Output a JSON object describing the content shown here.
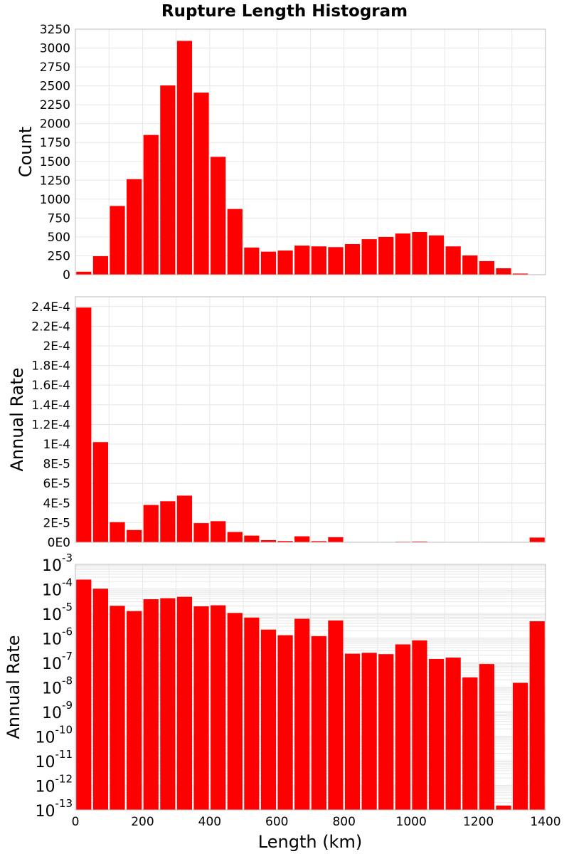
{
  "chart_data": {
    "type": "bar",
    "title": "Rupture Length Histogram",
    "xlabel": "Length (km)",
    "xlim": [
      0,
      1400
    ],
    "bin_width": 50,
    "x_ticks": [
      0,
      200,
      400,
      600,
      800,
      1000,
      1200,
      1400
    ],
    "bar_color": "#ff0000",
    "grid": true,
    "bin_centers": [
      25,
      75,
      125,
      175,
      225,
      275,
      325,
      375,
      425,
      475,
      525,
      575,
      625,
      675,
      725,
      775,
      825,
      875,
      925,
      975,
      1025,
      1075,
      1125,
      1175,
      1225,
      1275,
      1325,
      1375
    ],
    "panels": [
      {
        "name": "count",
        "ylabel": "Count",
        "yscale": "linear",
        "ylim": [
          0,
          3250
        ],
        "y_ticks": [
          {
            "value": 0,
            "label": "0"
          },
          {
            "value": 250,
            "label": "250"
          },
          {
            "value": 500,
            "label": "500"
          },
          {
            "value": 750,
            "label": "750"
          },
          {
            "value": 1000,
            "label": "1000"
          },
          {
            "value": 1250,
            "label": "1250"
          },
          {
            "value": 1500,
            "label": "1500"
          },
          {
            "value": 1750,
            "label": "1750"
          },
          {
            "value": 2000,
            "label": "2000"
          },
          {
            "value": 2250,
            "label": "2250"
          },
          {
            "value": 2500,
            "label": "2500"
          },
          {
            "value": 2750,
            "label": "2750"
          },
          {
            "value": 3000,
            "label": "3000"
          },
          {
            "value": 3250,
            "label": "3250"
          }
        ],
        "values": [
          40,
          245,
          910,
          1265,
          1850,
          2505,
          3095,
          2410,
          1560,
          870,
          360,
          305,
          320,
          385,
          375,
          365,
          405,
          470,
          500,
          545,
          565,
          520,
          375,
          255,
          180,
          85,
          15,
          5
        ]
      },
      {
        "name": "rate-linear",
        "ylabel": "Annual Rate",
        "yscale": "linear",
        "ylim": [
          0,
          0.00025
        ],
        "y_ticks": [
          {
            "value": 0,
            "label": "0E0"
          },
          {
            "value": 2e-05,
            "label": "2E-5"
          },
          {
            "value": 4e-05,
            "label": "4E-5"
          },
          {
            "value": 6e-05,
            "label": "6E-5"
          },
          {
            "value": 8e-05,
            "label": "8E-5"
          },
          {
            "value": 0.0001,
            "label": "1E-4"
          },
          {
            "value": 0.00012,
            "label": "1.2E-4"
          },
          {
            "value": 0.00014,
            "label": "1.4E-4"
          },
          {
            "value": 0.00016,
            "label": "1.6E-4"
          },
          {
            "value": 0.00018,
            "label": "1.8E-4"
          },
          {
            "value": 0.0002,
            "label": "2E-4"
          },
          {
            "value": 0.00022,
            "label": "2.2E-4"
          },
          {
            "value": 0.00024,
            "label": "2.4E-4"
          }
        ],
        "values": [
          0.000239,
          0.000102,
          2.05e-05,
          1.25e-05,
          3.8e-05,
          4.18e-05,
          4.75e-05,
          1.95e-05,
          2.15e-05,
          1.05e-05,
          6.8e-06,
          2.2e-06,
          1.3e-06,
          6.1e-06,
          1.2e-06,
          5.2e-06,
          2.3e-07,
          2.5e-07,
          2.2e-07,
          5.5e-07,
          8e-07,
          1.4e-07,
          1.6e-07,
          2.5e-08,
          8.7e-08,
          1.5e-13,
          1.5e-08,
          4.8e-06
        ]
      },
      {
        "name": "rate-log",
        "ylabel": "Annual Rate",
        "yscale": "log",
        "ylim": [
          1e-13,
          0.001
        ],
        "y_ticks": [
          {
            "value": 1e-13,
            "base": "10",
            "exp": "-13"
          },
          {
            "value": 1e-12,
            "base": "10",
            "exp": "-12"
          },
          {
            "value": 1e-11,
            "base": "10",
            "exp": "-11"
          },
          {
            "value": 1e-10,
            "base": "10",
            "exp": "-10"
          },
          {
            "value": 1e-09,
            "base": "10",
            "exp": "-9"
          },
          {
            "value": 1e-08,
            "base": "10",
            "exp": "-8"
          },
          {
            "value": 1e-07,
            "base": "10",
            "exp": "-7"
          },
          {
            "value": 1e-06,
            "base": "10",
            "exp": "-6"
          },
          {
            "value": 1e-05,
            "base": "10",
            "exp": "-5"
          },
          {
            "value": 0.0001,
            "base": "10",
            "exp": "-4"
          },
          {
            "value": 0.001,
            "base": "10",
            "exp": "-3"
          }
        ],
        "values": [
          0.000239,
          0.000102,
          2.05e-05,
          1.25e-05,
          3.8e-05,
          4.18e-05,
          4.75e-05,
          1.95e-05,
          2.15e-05,
          1.05e-05,
          6.8e-06,
          2.2e-06,
          1.3e-06,
          6.1e-06,
          1.2e-06,
          5.2e-06,
          2.3e-07,
          2.5e-07,
          2.2e-07,
          5.5e-07,
          8e-07,
          1.4e-07,
          1.6e-07,
          2.5e-08,
          8.7e-08,
          1.5e-13,
          1.5e-08,
          4.8e-06
        ]
      }
    ]
  }
}
